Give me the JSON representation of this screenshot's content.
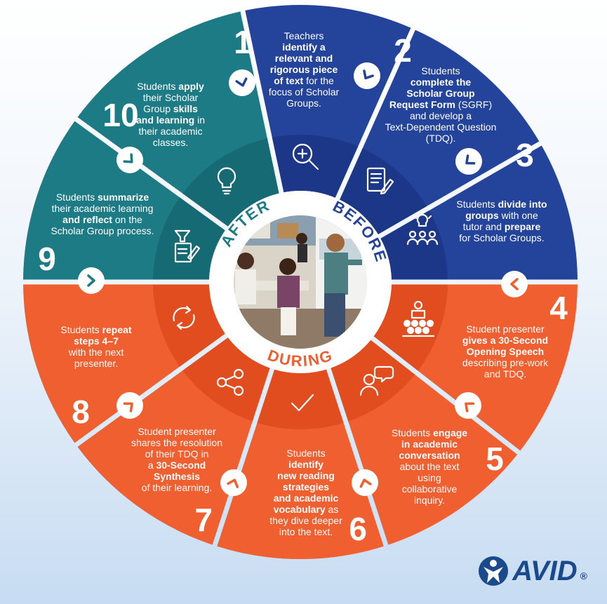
{
  "phases": {
    "before": "BEFORE",
    "during": "DURING",
    "after": "AFTER"
  },
  "colors": {
    "before": "#24439a",
    "during": "#ef5f2f",
    "after": "#1d7b86",
    "background": "#dce8f5"
  },
  "steps": [
    {
      "number": "1",
      "phase": "before",
      "icon": "magnifier-plus-icon",
      "text": [
        [
          {
            "t": "Teachers",
            "b": false
          }
        ],
        [
          {
            "t": "identify a",
            "b": true
          }
        ],
        [
          {
            "t": "relevant and",
            "b": true
          }
        ],
        [
          {
            "t": "rigorous piece",
            "b": true
          }
        ],
        [
          {
            "t": "of text",
            "b": true
          },
          {
            "t": " for the",
            "b": false
          }
        ],
        [
          {
            "t": "focus of Scholar",
            "b": false
          }
        ],
        [
          {
            "t": "Groups.",
            "b": false
          }
        ]
      ]
    },
    {
      "number": "2",
      "phase": "before",
      "icon": "form-pencil-icon",
      "text": [
        [
          {
            "t": "Students",
            "b": false
          }
        ],
        [
          {
            "t": "complete the",
            "b": true
          }
        ],
        [
          {
            "t": "Scholar Group",
            "b": true
          }
        ],
        [
          {
            "t": "Request Form",
            "b": true
          },
          {
            "t": " (SGRF)",
            "b": false
          }
        ],
        [
          {
            "t": "and develop a",
            "b": false
          }
        ],
        [
          {
            "t": "Text-Dependent Question",
            "b": false
          }
        ],
        [
          {
            "t": "(TDQ).",
            "b": false
          }
        ]
      ]
    },
    {
      "number": "3",
      "phase": "before",
      "icon": "group-idea-icon",
      "text": [
        [
          {
            "t": "Students ",
            "b": false
          },
          {
            "t": "divide into",
            "b": true
          }
        ],
        [
          {
            "t": "groups",
            "b": true
          },
          {
            "t": " with one",
            "b": false
          }
        ],
        [
          {
            "t": "tutor and ",
            "b": false
          },
          {
            "t": "prepare",
            "b": true
          }
        ],
        [
          {
            "t": "for Scholar Groups.",
            "b": false
          }
        ]
      ]
    },
    {
      "number": "4",
      "phase": "during",
      "icon": "presenter-audience-icon",
      "text": [
        [
          {
            "t": "Student presenter",
            "b": false
          }
        ],
        [
          {
            "t": "gives a 30-Second",
            "b": true
          }
        ],
        [
          {
            "t": "Opening Speech",
            "b": true
          }
        ],
        [
          {
            "t": "describing pre-work",
            "b": false
          }
        ],
        [
          {
            "t": "and TDQ.",
            "b": false
          }
        ]
      ]
    },
    {
      "number": "5",
      "phase": "during",
      "icon": "conversation-icon",
      "text": [
        [
          {
            "t": "Students ",
            "b": false
          },
          {
            "t": "engage",
            "b": true
          }
        ],
        [
          {
            "t": "in academic",
            "b": true
          }
        ],
        [
          {
            "t": "conversation",
            "b": true
          }
        ],
        [
          {
            "t": "about the text",
            "b": false
          }
        ],
        [
          {
            "t": "using",
            "b": false
          }
        ],
        [
          {
            "t": "collaborative",
            "b": false
          }
        ],
        [
          {
            "t": "inquiry.",
            "b": false
          }
        ]
      ]
    },
    {
      "number": "6",
      "phase": "during",
      "icon": "checkmark-icon",
      "text": [
        [
          {
            "t": "Students",
            "b": false
          }
        ],
        [
          {
            "t": "identify",
            "b": true
          }
        ],
        [
          {
            "t": "new reading",
            "b": true
          }
        ],
        [
          {
            "t": "strategies",
            "b": true
          }
        ],
        [
          {
            "t": "and academic",
            "b": true
          }
        ],
        [
          {
            "t": "vocabulary",
            "b": true
          },
          {
            "t": " as",
            "b": false
          }
        ],
        [
          {
            "t": "they dive deeper",
            "b": false
          }
        ],
        [
          {
            "t": "into the text.",
            "b": false
          }
        ]
      ]
    },
    {
      "number": "7",
      "phase": "during",
      "icon": "share-nodes-icon",
      "text": [
        [
          {
            "t": "Student presenter",
            "b": false
          }
        ],
        [
          {
            "t": "shares the resolution",
            "b": false
          }
        ],
        [
          {
            "t": "of their TDQ in",
            "b": false
          }
        ],
        [
          {
            "t": "a ",
            "b": false
          },
          {
            "t": "30-Second",
            "b": true
          }
        ],
        [
          {
            "t": "Synthesis",
            "b": true
          }
        ],
        [
          {
            "t": "of their learning.",
            "b": false
          }
        ]
      ]
    },
    {
      "number": "8",
      "phase": "during",
      "icon": "repeat-arrows-icon",
      "text": [
        [
          {
            "t": "Students ",
            "b": false
          },
          {
            "t": "repeat",
            "b": true
          }
        ],
        [
          {
            "t": "steps 4–7",
            "b": true
          }
        ],
        [
          {
            "t": "with the next",
            "b": false
          }
        ],
        [
          {
            "t": "presenter.",
            "b": false
          }
        ]
      ]
    },
    {
      "number": "9",
      "phase": "after",
      "icon": "funnel-document-icon",
      "text": [
        [
          {
            "t": "Students ",
            "b": false
          },
          {
            "t": "summarize",
            "b": true
          }
        ],
        [
          {
            "t": "their academic learning",
            "b": false
          }
        ],
        [
          {
            "t": "and reflect",
            "b": true
          },
          {
            "t": " on the",
            "b": false
          }
        ],
        [
          {
            "t": "Scholar Group process.",
            "b": false
          }
        ]
      ]
    },
    {
      "number": "10",
      "phase": "after",
      "icon": "lightbulb-icon",
      "text": [
        [
          {
            "t": "Students ",
            "b": false
          },
          {
            "t": "apply",
            "b": true
          }
        ],
        [
          {
            "t": "their Scholar",
            "b": false
          }
        ],
        [
          {
            "t": "Group ",
            "b": false
          },
          {
            "t": "skills",
            "b": true
          }
        ],
        [
          {
            "t": "and learning",
            "b": true
          },
          {
            "t": " in",
            "b": false
          }
        ],
        [
          {
            "t": "their academic",
            "b": false
          }
        ],
        [
          {
            "t": "classes.",
            "b": false
          }
        ]
      ]
    }
  ],
  "logo": {
    "text": "AVID",
    "trademark": "®"
  }
}
